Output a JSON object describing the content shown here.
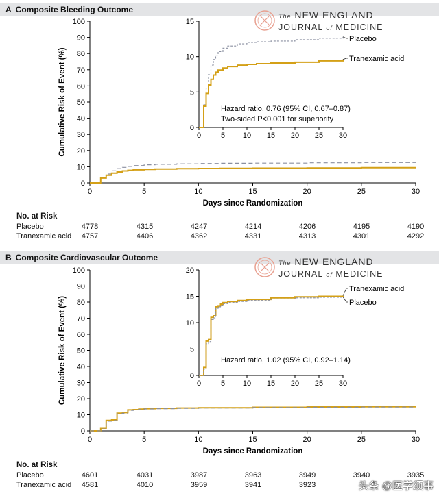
{
  "panels": [
    {
      "letter": "A",
      "title": "Composite Bleeding Outcome",
      "ylabel": "Cumulative Risk of Event (%)",
      "xlabel": "Days since Randomization",
      "journal": {
        "line1_pre": "The",
        "line1": "NEW ENGLAND",
        "line2_pre": "JOURNAL",
        "line2_of": "of",
        "line2": "MEDICINE"
      },
      "inset_annotation": [
        "Hazard ratio, 0.76 (95% CI, 0.67–0.87)",
        "Two-sided P<0.001 for superiority"
      ],
      "risk_table": {
        "header": "No. at Risk",
        "rows": [
          {
            "label": "Placebo",
            "values": [
              "4778",
              "4315",
              "4247",
              "4214",
              "4206",
              "4195",
              "4190"
            ]
          },
          {
            "label": "Tranexamic acid",
            "values": [
              "4757",
              "4406",
              "4362",
              "4331",
              "4313",
              "4301",
              "4292"
            ]
          }
        ]
      }
    },
    {
      "letter": "B",
      "title": "Composite Cardiovascular Outcome",
      "ylabel": "Cumulative Risk of Event (%)",
      "xlabel": "Days since Randomization",
      "journal": {
        "line1_pre": "The",
        "line1": "NEW ENGLAND",
        "line2_pre": "JOURNAL",
        "line2_of": "of",
        "line2": "MEDICINE"
      },
      "inset_annotation": [
        "Hazard ratio, 1.02 (95% CI, 0.92–1.14)"
      ],
      "risk_table": {
        "header": "No. at Risk",
        "rows": [
          {
            "label": "Placebo",
            "values": [
              "4601",
              "4031",
              "3987",
              "3963",
              "3949",
              "3940",
              "3935"
            ]
          },
          {
            "label": "Tranexamic acid",
            "values": [
              "4581",
              "4010",
              "3959",
              "3941",
              "3923",
              "",
              ""
            ]
          }
        ]
      }
    }
  ],
  "watermark": "头条 @医学须事",
  "colors": {
    "placebo": "#8a8fa0",
    "tranexamic": "#d4a017",
    "panel_bar": "#e3e4e6",
    "seal": "#e8a090"
  },
  "chart_data": [
    {
      "type": "line",
      "title": "Composite Bleeding Outcome",
      "xlabel": "Days since Randomization",
      "ylabel": "Cumulative Risk of Event (%)",
      "xlim": [
        0,
        30
      ],
      "ylim": [
        0,
        100
      ],
      "xticks": [
        0,
        5,
        10,
        15,
        20,
        25,
        30
      ],
      "yticks": [
        0,
        10,
        20,
        30,
        40,
        50,
        60,
        70,
        80,
        90,
        100
      ],
      "series": [
        {
          "name": "Placebo",
          "style": "dashed",
          "x": [
            0,
            1,
            1.5,
            2,
            2.5,
            3,
            3.5,
            4,
            5,
            6,
            8,
            10,
            12,
            15,
            20,
            25,
            30
          ],
          "y": [
            0,
            3.2,
            5.5,
            7.5,
            8.8,
            9.6,
            10.2,
            10.7,
            11.2,
            11.5,
            11.8,
            12.0,
            12.1,
            12.2,
            12.4,
            12.6,
            12.8
          ]
        },
        {
          "name": "Tranexamic acid",
          "style": "solid",
          "x": [
            0,
            1,
            1.5,
            2,
            2.5,
            3,
            3.5,
            4,
            5,
            6,
            8,
            10,
            12,
            15,
            20,
            25,
            30
          ],
          "y": [
            0,
            3.0,
            4.8,
            6.0,
            6.8,
            7.4,
            7.8,
            8.1,
            8.4,
            8.6,
            8.8,
            8.9,
            9.0,
            9.1,
            9.2,
            9.4,
            9.6
          ]
        }
      ],
      "inset": {
        "xlim": [
          0,
          30
        ],
        "ylim": [
          0,
          15
        ],
        "xticks": [
          0,
          5,
          10,
          15,
          20,
          25,
          30
        ],
        "yticks": [
          0,
          5,
          10,
          15
        ]
      }
    },
    {
      "type": "line",
      "title": "Composite Cardiovascular Outcome",
      "xlabel": "Days since Randomization",
      "ylabel": "Cumulative Risk of Event (%)",
      "xlim": [
        0,
        30
      ],
      "ylim": [
        0,
        100
      ],
      "xticks": [
        0,
        5,
        10,
        15,
        20,
        25,
        30
      ],
      "yticks": [
        0,
        10,
        20,
        30,
        40,
        50,
        60,
        70,
        80,
        90,
        100
      ],
      "series": [
        {
          "name": "Tranexamic acid",
          "style": "solid",
          "x": [
            0,
            1,
            1.5,
            2,
            2.5,
            3,
            3.5,
            4,
            4.5,
            5,
            6,
            8,
            10,
            15,
            20,
            25,
            30
          ],
          "y": [
            0,
            1.5,
            6.5,
            6.8,
            11.0,
            11.3,
            13.0,
            13.2,
            13.5,
            13.8,
            14.0,
            14.2,
            14.4,
            14.7,
            14.9,
            15.0,
            15.1
          ]
        },
        {
          "name": "Placebo",
          "style": "dashed",
          "x": [
            0,
            1,
            1.5,
            2,
            2.5,
            3,
            3.5,
            4,
            4.5,
            5,
            6,
            8,
            10,
            15,
            20,
            25,
            30
          ],
          "y": [
            0,
            1.2,
            6.0,
            6.4,
            10.6,
            10.9,
            12.7,
            13.0,
            13.3,
            13.6,
            13.8,
            14.0,
            14.2,
            14.5,
            14.7,
            14.8,
            14.9
          ]
        }
      ],
      "inset": {
        "xlim": [
          0,
          30
        ],
        "ylim": [
          0,
          20
        ],
        "xticks": [
          0,
          5,
          10,
          15,
          20,
          25,
          30
        ],
        "yticks": [
          0,
          5,
          10,
          15,
          20
        ]
      }
    }
  ]
}
